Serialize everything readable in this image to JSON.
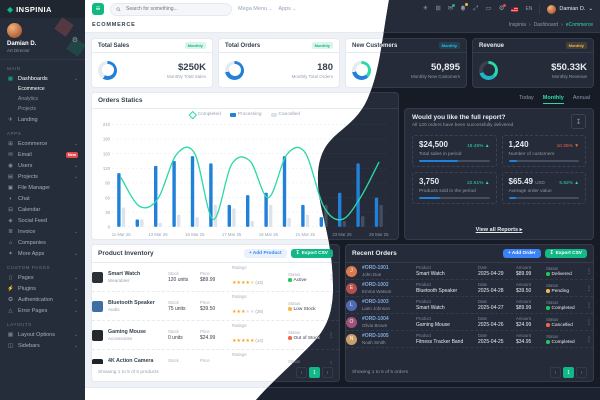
{
  "brand": {
    "name": "INSPINIA"
  },
  "profile": {
    "name": "Damian D.",
    "role": "Art Director"
  },
  "header": {
    "search_placeholder": "Search for something...",
    "mega_menu": "Mega Menu",
    "apps": "Apps",
    "lang": "EN",
    "user_name": "Damian D."
  },
  "subbar": {
    "section": "ECOMMERCE",
    "crumb1": "Inspinia",
    "crumb2": "Dashboard",
    "crumb3": "eCommerce"
  },
  "icon_glyphs": {
    "menu": "≡",
    "dashboards": "▦",
    "landing": "✈",
    "ecommerce": "⊞",
    "email": "✉",
    "users": "◉",
    "projects": "▤",
    "file_manager": "▣",
    "chat": "◗",
    "calendar": "⊟",
    "social_feed": "◈",
    "invoice": "≣",
    "companies": "⌂",
    "more_apps": "✦",
    "pages": "▯",
    "plugins": "⚡",
    "authentication": "✪",
    "error_pages": "△",
    "layout_options": "▦",
    "sidebars": "◫",
    "gear": "⚙",
    "sun": "☀",
    "grid": "⊞",
    "mail": "✉",
    "fullscreen": "⤢",
    "monitor": "▭",
    "settings": "⚙",
    "caret": "⌄",
    "chevron": "›",
    "kebab": "⋮",
    "download": "↧",
    "arrow_up": "▲",
    "arrow_down": "▼",
    "view_arrow": "▸",
    "pg_prev": "‹",
    "pg_next": "›"
  },
  "sidebar": {
    "sections": [
      {
        "title": "MAIN",
        "items": [
          {
            "label": "Dashboards"
          },
          {
            "label": "Ecommerce"
          },
          {
            "label": "Analytics"
          },
          {
            "label": "Projects"
          },
          {
            "label": "Landing"
          }
        ]
      },
      {
        "title": "APPS",
        "items": [
          {
            "label": "Ecommerce"
          },
          {
            "label": "Email",
            "badge": "New"
          },
          {
            "label": "Users"
          },
          {
            "label": "Projects"
          },
          {
            "label": "File Manager"
          },
          {
            "label": "Chat"
          },
          {
            "label": "Calendar"
          },
          {
            "label": "Social Feed"
          },
          {
            "label": "Invoice"
          },
          {
            "label": "Companies"
          },
          {
            "label": "More Apps"
          }
        ]
      },
      {
        "title": "CUSTOM PAGES",
        "items": [
          {
            "label": "Pages"
          },
          {
            "label": "Plugins"
          },
          {
            "label": "Authentication"
          },
          {
            "label": "Error Pages"
          }
        ]
      },
      {
        "title": "LAYOUTS",
        "items": [
          {
            "label": "Layout Options"
          },
          {
            "label": "Sidebars"
          }
        ]
      }
    ]
  },
  "stat_cards": [
    {
      "title": "Total Sales",
      "badge": "Monthly",
      "badge_color": "#10b981",
      "value": "$250K",
      "sublabel": "Monthly Total Sales",
      "donut": {
        "segments": [
          {
            "color": "#2180d8",
            "pct": 58
          }
        ]
      }
    },
    {
      "title": "Total Orders",
      "badge": "Monthly",
      "badge_color": "#10b981",
      "value": "180",
      "sublabel": "Monthly Total Orders",
      "donut": {
        "segments": [
          {
            "color": "#2180d8",
            "pct": 72
          }
        ]
      }
    },
    {
      "title": "New Customers",
      "badge": "Monthly",
      "badge_color": "#22c0e8",
      "value": "50,895",
      "sublabel": "Monthly New Customers",
      "donut": {
        "segments": [
          {
            "color": "#2bd9a7",
            "pct": 38
          },
          {
            "color": "#2180d8",
            "pct": 34
          }
        ]
      }
    },
    {
      "title": "Revenue",
      "badge": "Monthly",
      "badge_color": "#f7b84b",
      "value": "$50.33K",
      "sublabel": "Monthly Revenue",
      "donut": {
        "segments": [
          {
            "color": "#2bd9a7",
            "pct": 36
          },
          {
            "color": "#1fb5c9",
            "pct": 34
          }
        ]
      }
    }
  ],
  "orders_panel": {
    "title": "Orders Statics"
  },
  "chart_data": {
    "type": "mixed",
    "title": "Orders Statics",
    "categories": [
      "11 Mar 25",
      "12 Mar 25",
      "13 Mar 25",
      "14 Mar 25",
      "15 Mar 25",
      "16 Mar 25",
      "17 Mar 25",
      "18 Mar 25",
      "19 Mar 25",
      "20 Mar 25",
      "21 Mar 25",
      "22 Mar 25",
      "23 Mar 25",
      "24 Mar 25",
      "25 Mar 25"
    ],
    "x_label_every": 2,
    "ylim": [
      0,
      210
    ],
    "yticks": [
      0,
      30,
      60,
      90,
      120,
      150,
      180,
      210
    ],
    "grid": true,
    "legend_position": "top",
    "series": [
      {
        "name": "Completed",
        "type": "line",
        "color": "#2bd9a7",
        "values": [
          100,
          42,
          58,
          148,
          150,
          15,
          128,
          135,
          60,
          148,
          152,
          42,
          15,
          60,
          132
        ]
      },
      {
        "name": "Processing",
        "type": "bar",
        "color": "#2180d8",
        "values": [
          110,
          15,
          125,
          135,
          145,
          130,
          45,
          65,
          70,
          145,
          45,
          20,
          70,
          130,
          60
        ]
      },
      {
        "name": "Cancelled",
        "type": "bar",
        "color": "#dde3ec",
        "themed": true,
        "values": [
          40,
          15,
          8,
          25,
          20,
          45,
          38,
          12,
          45,
          18,
          25,
          45,
          12,
          22,
          45
        ]
      }
    ]
  },
  "report": {
    "tab1": "Today",
    "tab2": "Monthly",
    "tab3": "Annual",
    "title": "Would you like the full report?",
    "subtitle": "All 120 orders have been successfully delivered",
    "tiles": [
      {
        "value": "$24,500",
        "unit": "",
        "pct": "18.45%",
        "dir": "up",
        "label": "Total sales in period",
        "progress": 55
      },
      {
        "value": "1,240",
        "unit": "",
        "pct": "10.35%",
        "dir": "down",
        "label": "Number of customers",
        "progress": 12
      },
      {
        "value": "3,750",
        "unit": "",
        "pct": "22.61%",
        "dir": "up",
        "label": "Products sold in the period",
        "progress": 30
      },
      {
        "value": "$65.49",
        "unit": "USD",
        "pct": "5.92%",
        "dir": "up",
        "label": "Average order value",
        "progress": 10
      }
    ],
    "footer_link": "View all Reports"
  },
  "inventory": {
    "title": "Product Inventory",
    "add_button": "+ Add Product",
    "export_button": "Export CSV",
    "col_stock": "Stock",
    "col_price": "Price",
    "col_ratings": "Ratings",
    "col_status": "Status",
    "rows": [
      {
        "name": "Smart Watch",
        "category": "Wearables",
        "stock": "120 units",
        "price": "$89.99",
        "stars": 4.5,
        "count": "(43)",
        "status": "Active",
        "status_color": "#22c55e",
        "img_color": "#2b2f38"
      },
      {
        "name": "Bluetooth Speaker",
        "category": "Audio",
        "stock": "75 units",
        "price": "$39.50",
        "stars": 3,
        "count": "(28)",
        "status": "Low Stock",
        "status_color": "#f7b84b",
        "img_color": "#3f6ea5"
      },
      {
        "name": "Gaming Mouse",
        "category": "Accessories",
        "stock": "0 units",
        "price": "$24.99",
        "stars": 5,
        "count": "(14)",
        "status": "Out of Stock",
        "status_color": "#f06548",
        "img_color": "#23272e"
      },
      {
        "name": "4K Action Camera",
        "category": "Cameras",
        "stock": "60 units",
        "price": "$149.00",
        "stars": 4.5,
        "count": "(31)",
        "status": "Active",
        "status_color": "#22c55e",
        "img_color": "#1e222a"
      },
      {
        "name": "Fitness Tracker Band",
        "category": "Wearables",
        "stock": "220 units",
        "price": "$34.95",
        "stars": 4.5,
        "count": "(98)",
        "status": "Active",
        "status_color": "#22c55e",
        "img_color": "#a07850"
      }
    ],
    "footer": "Showing 1 to 5 of 5 products",
    "page": "1"
  },
  "recent_orders": {
    "title": "Recent Orders",
    "add_button": "+ Add Order",
    "export_button": "Export CSV",
    "col_product": "Product",
    "col_date": "Date",
    "col_amount": "Amount",
    "col_status": "Status",
    "rows": [
      {
        "id": "#ORD-1001",
        "customer": "John Doe",
        "product": "Smart Watch",
        "date": "2025-04-29",
        "amount": "$89.99",
        "status": "Delivered",
        "status_color": "#22c55e",
        "avatar_color": "#d97b4f",
        "initials": "J"
      },
      {
        "id": "#ORD-1002",
        "customer": "Emma Watson",
        "product": "Bluetooth Speaker",
        "date": "2025-04-28",
        "amount": "$39.50",
        "status": "Pending",
        "status_color": "#f7b84b",
        "avatar_color": "#b34f4f",
        "initials": "E"
      },
      {
        "id": "#ORD-1003",
        "customer": "Liam Johnson",
        "product": "Smart Watch",
        "date": "2025-04-27",
        "amount": "$89.99",
        "status": "Completed",
        "status_color": "#22c55e",
        "avatar_color": "#4f6ab3",
        "initials": "L"
      },
      {
        "id": "#ORD-1004",
        "customer": "Olivia Brown",
        "product": "Gaming Mouse",
        "date": "2025-04-26",
        "amount": "$24.99",
        "status": "Cancelled",
        "status_color": "#f06548",
        "avatar_color": "#a0527a",
        "initials": "O"
      },
      {
        "id": "#ORD-1005",
        "customer": "Noah Smith",
        "product": "Fitness Tracker Band",
        "date": "2025-04-25",
        "amount": "$34.95",
        "status": "Completed",
        "status_color": "#22c55e",
        "avatar_color": "#c9a06a",
        "initials": "N"
      }
    ],
    "footer": "Showing 1 to 5 of 5 orders",
    "page": "1"
  }
}
